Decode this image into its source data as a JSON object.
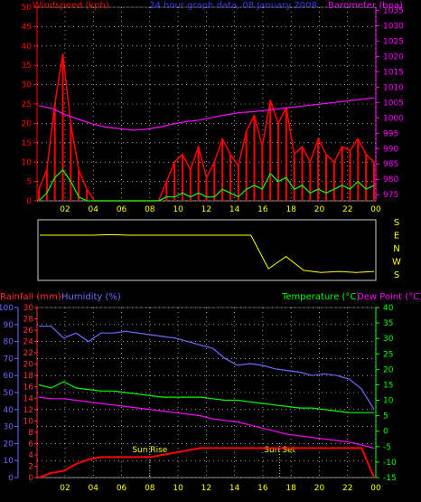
{
  "header": {
    "left_title": "Windspeed (kph)",
    "center_title": "24 hour graph data, 08 January 2008",
    "right_title": "Barometer (hpa)"
  },
  "bottom_header": {
    "rainfall": "Rainfall (mm)",
    "humidity": "Humidity (%)",
    "temperature": "Temperature (°C)",
    "dewpoint": "Dew Point (°C)"
  },
  "colors": {
    "wind": "#ff0000",
    "gust_green": "#00ff00",
    "pressure": "#ff00ff",
    "direction": "#ffff00",
    "rain": "#ff0000",
    "humidity": "#6b6bff",
    "temperature": "#00ff00",
    "dewpoint": "#ff00ff",
    "grid": "#ffffff",
    "axis_left_top": "#ff0000",
    "axis_right_top": "#ff00ff",
    "axis_left_bottom_rain": "#ff3030",
    "axis_left_bottom_hum": "#6b6bff",
    "axis_right_bottom": "#00ff00",
    "x_labels": "#ffff00"
  },
  "chart_data": [
    {
      "type": "line",
      "x_ticks": [
        "02",
        "04",
        "06",
        "08",
        "10",
        "12",
        "14",
        "16",
        "18",
        "20",
        "22",
        "00"
      ],
      "left_axis": {
        "ticks": [
          0,
          5,
          10,
          15,
          20,
          25,
          30,
          35,
          40,
          45,
          50
        ],
        "ylim": [
          0,
          50
        ]
      },
      "right_axis": {
        "ticks": [
          975,
          980,
          985,
          990,
          995,
          1000,
          1005,
          1010,
          1015,
          1020,
          1025,
          1030,
          1035
        ],
        "ylim": [
          973,
          1036
        ]
      },
      "series": [
        {
          "name": "Windspeed",
          "axis": "left",
          "values": [
            3,
            8,
            25,
            38,
            20,
            8,
            3,
            0,
            0,
            0,
            0,
            0,
            0,
            0,
            0,
            0,
            5,
            10,
            12,
            8,
            14,
            6,
            10,
            16,
            12,
            9,
            18,
            22,
            14,
            26,
            20,
            24,
            12,
            14,
            10,
            16,
            12,
            10,
            14,
            13,
            16,
            12,
            10
          ]
        },
        {
          "name": "Gust",
          "axis": "left",
          "values": [
            0,
            2,
            6,
            8,
            5,
            1,
            0,
            0,
            0,
            0,
            0,
            0,
            0,
            0,
            0,
            0,
            1,
            1,
            2,
            1,
            2,
            1,
            1,
            3,
            2,
            1,
            3,
            4,
            3,
            7,
            5,
            6,
            3,
            4,
            2,
            3,
            2,
            3,
            4,
            3,
            5,
            3,
            4
          ]
        },
        {
          "name": "Barometer",
          "axis": "right",
          "values": [
            1004,
            1003,
            1001,
            999.5,
            998,
            997,
            996.5,
            996,
            996.3,
            997,
            998,
            998.8,
            999.3,
            1000.2,
            1001,
            1001.7,
            1002,
            1002.5,
            1003,
            1003.5,
            1004,
            1004.5,
            1005,
            1005.5,
            1006,
            1006.5
          ]
        }
      ]
    },
    {
      "type": "line",
      "direction_labels": [
        "S",
        "E",
        "N",
        "W",
        "S"
      ],
      "series": [
        {
          "name": "Wind direction",
          "values": [
            0.22,
            0.22,
            0.22,
            0.22,
            0.21,
            0.22,
            0.22,
            0.22,
            0.22,
            0.22,
            0.22,
            0.22,
            0.22,
            0.85,
            0.62,
            0.88,
            0.92,
            0.9,
            0.92,
            0.9
          ]
        }
      ]
    },
    {
      "type": "line",
      "x_ticks": [
        "02",
        "04",
        "06",
        "08",
        "10",
        "12",
        "14",
        "16",
        "18",
        "20",
        "22",
        "00"
      ],
      "left_axis_humidity": {
        "ticks": [
          0,
          10,
          20,
          30,
          40,
          50,
          60,
          70,
          80,
          90,
          100
        ],
        "ylim": [
          0,
          100
        ]
      },
      "left_axis_rain": {
        "ticks": [
          0,
          2,
          4,
          6,
          8,
          10,
          12,
          14,
          16,
          18,
          20,
          22,
          24,
          26,
          28,
          30
        ],
        "ylim": [
          0,
          30
        ]
      },
      "right_axis_temperature": {
        "ticks": [
          -15,
          -10,
          -5,
          0,
          5,
          10,
          15,
          20,
          25,
          30,
          35,
          40
        ],
        "ylim": [
          -15,
          40
        ]
      },
      "annotations": [
        {
          "label": "Sun Rise",
          "x": "08:00"
        },
        {
          "label": "Sun Set",
          "x": "17:12"
        }
      ],
      "series": [
        {
          "name": "Rainfall",
          "axis": "rain",
          "values": [
            0,
            0.8,
            1.2,
            2.4,
            3.2,
            3.6,
            3.6,
            3.6,
            3.6,
            3.6,
            4.0,
            4.4,
            4.8,
            5.2,
            5.2,
            5.2,
            5.2,
            5.2,
            5.2,
            5.2,
            5.2,
            5.2,
            5.2,
            5.2,
            5.2,
            5.2,
            5.2,
            0
          ]
        },
        {
          "name": "Humidity",
          "axis": "humidity",
          "values": [
            89,
            89,
            82,
            85,
            80,
            85,
            85,
            86,
            85,
            84,
            83,
            82,
            80,
            78,
            76,
            70,
            66,
            67,
            66,
            64,
            63,
            62,
            60,
            61,
            60,
            58,
            52,
            40
          ]
        },
        {
          "name": "Temperature",
          "axis": "temperature",
          "values": [
            15,
            14,
            16,
            14,
            13.5,
            13,
            13,
            12.5,
            12,
            11.5,
            11,
            11,
            11,
            11,
            10.5,
            10,
            10,
            9.5,
            9,
            8.5,
            8,
            7.5,
            7.5,
            7,
            6.5,
            6,
            6,
            6
          ]
        },
        {
          "name": "Dew Point",
          "axis": "temperature",
          "values": [
            11,
            10.5,
            10.5,
            10,
            9.5,
            9,
            8.5,
            8,
            7.5,
            7,
            6.5,
            6,
            5.5,
            5,
            4,
            3.5,
            3,
            2,
            1,
            0,
            -1,
            -1.5,
            -2,
            -2.5,
            -3,
            -3.5,
            -4.5,
            -5.5
          ]
        }
      ]
    }
  ]
}
